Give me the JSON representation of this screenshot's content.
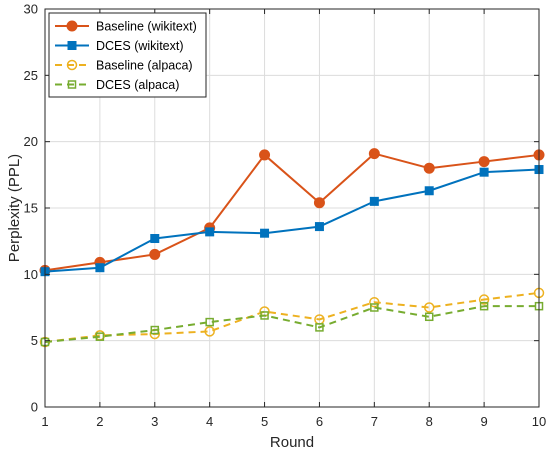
{
  "chart_data": {
    "type": "line",
    "title": "",
    "xlabel": "Round",
    "ylabel": "Perplexity (PPL)",
    "x": [
      1,
      2,
      3,
      4,
      5,
      6,
      7,
      8,
      9,
      10
    ],
    "xlim": [
      1,
      10
    ],
    "ylim": [
      0,
      30
    ],
    "xticks": [
      1,
      2,
      3,
      4,
      5,
      6,
      7,
      8,
      9,
      10
    ],
    "yticks": [
      0,
      5,
      10,
      15,
      20,
      25,
      30
    ],
    "grid": true,
    "legend_position": "top-left",
    "series": [
      {
        "name": "Baseline (wikitext)",
        "values": [
          10.3,
          10.9,
          11.5,
          13.5,
          19.0,
          15.4,
          19.1,
          18.0,
          18.5,
          19.0
        ],
        "color": "#D95319",
        "line_style": "solid",
        "marker": "filled-circle"
      },
      {
        "name": "DCES (wikitext)",
        "values": [
          10.2,
          10.5,
          12.7,
          13.2,
          13.1,
          13.6,
          15.5,
          16.3,
          17.7,
          17.9
        ],
        "color": "#0072BD",
        "line_style": "solid",
        "marker": "filled-square"
      },
      {
        "name": "Baseline (alpaca)",
        "values": [
          4.9,
          5.4,
          5.5,
          5.7,
          7.2,
          6.6,
          7.9,
          7.5,
          8.1,
          8.6
        ],
        "color": "#EDB120",
        "line_style": "dashed",
        "marker": "open-circle"
      },
      {
        "name": "DCES (alpaca)",
        "values": [
          4.9,
          5.3,
          5.8,
          6.4,
          6.9,
          6.0,
          7.5,
          6.8,
          7.6,
          7.6
        ],
        "color": "#77AC30",
        "line_style": "dashed",
        "marker": "open-square"
      }
    ]
  }
}
